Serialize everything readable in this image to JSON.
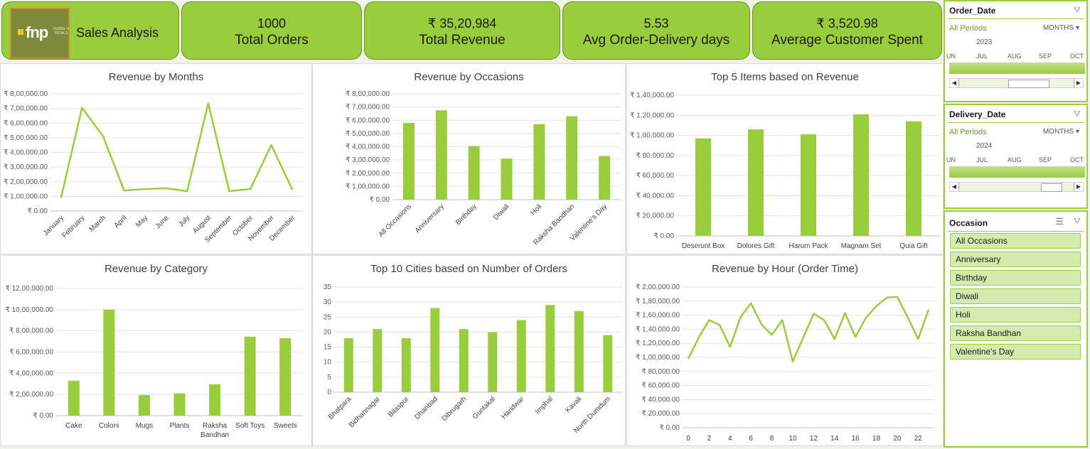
{
  "header": {
    "logo_text": "fnp",
    "logo_sub": "FERNS N PETALS",
    "title": "Sales Analysis",
    "kpis": [
      {
        "value": "1000",
        "label": "Total Orders"
      },
      {
        "value": "₹ 35,20,984",
        "label": "Total Revenue"
      },
      {
        "value": "5.53",
        "label": "Avg Order-Delivery days"
      },
      {
        "value": "₹ 3,520.98",
        "label": "Average Customer Spent"
      }
    ]
  },
  "slicers": {
    "order_date": {
      "title": "Order_Date",
      "all": "All Periods",
      "granularity": "MONTHS",
      "year": "2023",
      "months": [
        "UN",
        "JUL",
        "AUG",
        "SEP",
        "OCT"
      ]
    },
    "delivery_date": {
      "title": "Delivery_Date",
      "all": "All Periods",
      "granularity": "MONTHS",
      "year": "2024",
      "months": [
        "UN",
        "JUL",
        "AUG",
        "SEP",
        "OCT"
      ]
    },
    "occasion": {
      "title": "Occasion",
      "items": [
        "All Occasions",
        "Anniversary",
        "Birthday",
        "Diwali",
        "Holi",
        "Raksha Bandhan",
        "Valentine's Day"
      ]
    }
  },
  "chart_data": [
    {
      "type": "line",
      "title": "Revenue by Months",
      "categories": [
        "January",
        "February",
        "March",
        "April",
        "May",
        "June",
        "July",
        "August",
        "September",
        "October",
        "November",
        "December"
      ],
      "values": [
        90000,
        705000,
        510000,
        140000,
        150000,
        155000,
        135000,
        735000,
        135000,
        150000,
        450000,
        145000
      ],
      "yticks": [
        "₹ 0.00",
        "₹ 1,00,000.00",
        "₹ 2,00,000.00",
        "₹ 3,00,000.00",
        "₹ 4,00,000.00",
        "₹ 5,00,000.00",
        "₹ 6,00,000.00",
        "₹ 7,00,000.00",
        "₹ 8,00,000.00"
      ],
      "ylim": [
        0,
        800000
      ],
      "color": "#9acd3c"
    },
    {
      "type": "bar",
      "title": "Revenue by Occasions",
      "categories": [
        "All Occasions",
        "Anniversary",
        "Birthday",
        "Diwali",
        "Holi",
        "Raksha Bandhan",
        "Valentine's Day"
      ],
      "values": [
        580000,
        675000,
        405000,
        310000,
        570000,
        630000,
        330000
      ],
      "yticks": [
        "₹ 0.00",
        "₹ 1,00,000.00",
        "₹ 2,00,000.00",
        "₹ 3,00,000.00",
        "₹ 4,00,000.00",
        "₹ 5,00,000.00",
        "₹ 6,00,000.00",
        "₹ 7,00,000.00",
        "₹ 8,00,000.00"
      ],
      "ylim": [
        0,
        800000
      ],
      "color": "#9acd3c"
    },
    {
      "type": "bar",
      "title": "Top 5 Items based on Revenue",
      "categories": [
        "Deserunt Box",
        "Dolores Gift",
        "Harum Pack",
        "Magnam Set",
        "Quia Gift"
      ],
      "values": [
        97000,
        106000,
        101000,
        121000,
        114000
      ],
      "yticks": [
        "₹ 0.00",
        "₹ 20,000.00",
        "₹ 40,000.00",
        "₹ 60,000.00",
        "₹ 80,000.00",
        "₹ 1,00,000.00",
        "₹ 1,20,000.00",
        "₹ 1,40,000.00"
      ],
      "ylim": [
        0,
        140000
      ],
      "color": "#9acd3c"
    },
    {
      "type": "bar",
      "title": "Revenue by Category",
      "categories": [
        "Cake",
        "Colors",
        "Mugs",
        "Plants",
        "Raksha Bandhan",
        "Soft Toys",
        "Sweets"
      ],
      "values": [
        330000,
        1000000,
        195000,
        210000,
        295000,
        745000,
        730000
      ],
      "yticks": [
        "₹ 0.00",
        "₹ 2,00,000.00",
        "₹ 4,00,000.00",
        "₹ 6,00,000.00",
        "₹ 8,00,000.00",
        "₹ 10,00,000.00",
        "₹ 12,00,000.00"
      ],
      "ylim": [
        0,
        1200000
      ],
      "color": "#9acd3c"
    },
    {
      "type": "bar",
      "title": "Top 10 Cities based on Number of Orders",
      "categories": [
        "Bhatpara",
        "Bidhannagar",
        "Bilaspur",
        "Dhanbad",
        "Dibrugarh",
        "Guntakal",
        "Haridwar",
        "Imphal",
        "Kavali",
        "North Dumdum"
      ],
      "values": [
        18,
        21,
        18,
        28,
        21,
        20,
        24,
        29,
        27,
        19
      ],
      "yticks": [
        "0",
        "5",
        "10",
        "15",
        "20",
        "25",
        "30",
        "35"
      ],
      "ylim": [
        0,
        35
      ],
      "color": "#9acd3c"
    },
    {
      "type": "line",
      "title": "Revenue by Hour (Order Time)",
      "x": [
        0,
        1,
        2,
        3,
        4,
        5,
        6,
        7,
        8,
        9,
        10,
        11,
        12,
        13,
        14,
        15,
        16,
        17,
        18,
        19,
        20,
        21,
        22,
        23
      ],
      "xticks": [
        "0",
        "2",
        "4",
        "6",
        "8",
        "10",
        "12",
        "14",
        "16",
        "18",
        "20",
        "22"
      ],
      "values": [
        98000,
        128000,
        153000,
        146000,
        115000,
        157000,
        177000,
        147000,
        132000,
        153000,
        94000,
        128000,
        162000,
        153000,
        126000,
        163000,
        129000,
        156000,
        173000,
        185000,
        186000,
        157000,
        126000,
        168000
      ],
      "yticks": [
        "₹ 0.00",
        "₹ 20,000.00",
        "₹ 40,000.00",
        "₹ 60,000.00",
        "₹ 80,000.00",
        "₹ 1,00,000.00",
        "₹ 1,20,000.00",
        "₹ 1,40,000.00",
        "₹ 1,60,000.00",
        "₹ 1,80,000.00",
        "₹ 2,00,000.00"
      ],
      "ylim": [
        0,
        200000
      ],
      "color": "#9acd3c"
    }
  ]
}
